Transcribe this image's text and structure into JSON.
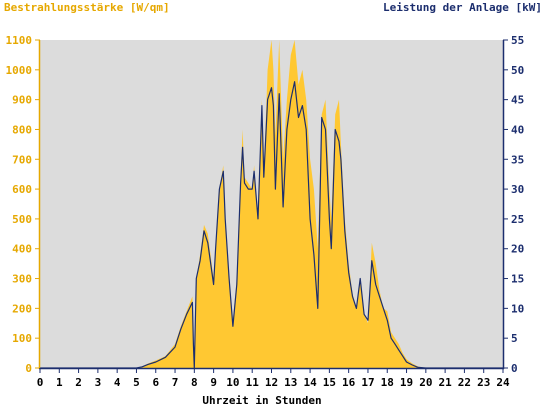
{
  "chart_data": {
    "type": "area",
    "title_left": "Bestrahlungsstärke [W/qm]",
    "title_right": "Leistung der Anlage [kW]",
    "xlabel": "Uhrzeit in Stunden",
    "xlim": [
      0,
      24
    ],
    "ylim_left": [
      0,
      1100
    ],
    "ylim_right": [
      0,
      55
    ],
    "x_ticks": [
      "0",
      "1",
      "2",
      "3",
      "4",
      "5",
      "6",
      "7",
      "8",
      "9",
      "10",
      "11",
      "12",
      "13",
      "14",
      "15",
      "16",
      "17",
      "18",
      "19",
      "20",
      "21",
      "22",
      "23",
      "24"
    ],
    "y_ticks_left": [
      "0",
      "100",
      "200",
      "300",
      "400",
      "500",
      "600",
      "700",
      "800",
      "900",
      "1000",
      "1100"
    ],
    "y_ticks_right": [
      "0",
      "5",
      "10",
      "15",
      "20",
      "25",
      "30",
      "35",
      "40",
      "45",
      "50",
      "55"
    ],
    "grid": false,
    "colors": {
      "plot_bg": "#dcdcdc",
      "irradiance_fill": "#ffc832",
      "power_line": "#1c2e6e",
      "left_axis": "#e6a800",
      "right_axis": "#1c2e6e"
    },
    "series": [
      {
        "axis": "left",
        "style": "area",
        "x": [
          0,
          5,
          5.3,
          5.6,
          6,
          6.5,
          7,
          7.3,
          7.6,
          7.9,
          7.95,
          8.0,
          8.1,
          8.3,
          8.5,
          8.7,
          9.0,
          9.1,
          9.3,
          9.5,
          9.6,
          9.8,
          10.0,
          10.2,
          10.4,
          10.5,
          10.6,
          10.8,
          11.0,
          11.1,
          11.3,
          11.5,
          11.6,
          11.8,
          12.0,
          12.1,
          12.2,
          12.4,
          12.6,
          12.8,
          13.0,
          13.2,
          13.4,
          13.6,
          13.8,
          14.0,
          14.2,
          14.4,
          14.6,
          14.8,
          15.0,
          15.1,
          15.3,
          15.5,
          15.6,
          15.8,
          16.0,
          16.2,
          16.4,
          16.6,
          16.8,
          17.0,
          17.2,
          17.4,
          17.6,
          17.8,
          18.0,
          18.2,
          18.4,
          18.6,
          18.8,
          19.0,
          19.3,
          19.6,
          20.0,
          20.3,
          24
        ],
        "values": [
          0,
          0,
          5,
          15,
          25,
          40,
          80,
          140,
          190,
          240,
          100,
          5,
          300,
          380,
          480,
          450,
          300,
          400,
          600,
          680,
          500,
          300,
          160,
          300,
          650,
          800,
          640,
          620,
          600,
          680,
          500,
          900,
          650,
          1000,
          1100,
          1000,
          780,
          1100,
          700,
          900,
          1050,
          1100,
          950,
          1000,
          900,
          700,
          600,
          400,
          850,
          900,
          600,
          500,
          850,
          900,
          750,
          500,
          350,
          250,
          200,
          300,
          180,
          150,
          420,
          350,
          260,
          200,
          190,
          120,
          100,
          80,
          50,
          30,
          15,
          5,
          0,
          0,
          0
        ]
      },
      {
        "axis": "right",
        "style": "line",
        "x": [
          0,
          5,
          5.3,
          5.6,
          6,
          6.5,
          7,
          7.3,
          7.6,
          7.9,
          7.95,
          8.0,
          8.1,
          8.3,
          8.5,
          8.7,
          9.0,
          9.1,
          9.3,
          9.5,
          9.6,
          9.8,
          10.0,
          10.2,
          10.4,
          10.5,
          10.6,
          10.8,
          11.0,
          11.1,
          11.3,
          11.5,
          11.6,
          11.8,
          12.0,
          12.1,
          12.2,
          12.4,
          12.6,
          12.8,
          13.0,
          13.2,
          13.4,
          13.6,
          13.8,
          14.0,
          14.2,
          14.4,
          14.6,
          14.8,
          15.0,
          15.1,
          15.3,
          15.5,
          15.6,
          15.8,
          16.0,
          16.2,
          16.4,
          16.6,
          16.8,
          17.0,
          17.2,
          17.4,
          17.6,
          17.8,
          18.0,
          18.2,
          18.4,
          18.6,
          18.8,
          19.0,
          19.3,
          19.6,
          20.0,
          20.3,
          24
        ],
        "values": [
          0,
          0,
          0.2,
          0.6,
          1,
          1.8,
          3.5,
          6.5,
          9,
          11,
          4,
          0,
          15,
          18,
          23,
          21,
          14,
          20,
          30,
          33,
          25,
          15,
          7,
          14,
          31,
          37,
          31,
          30,
          30,
          33,
          25,
          44,
          32,
          45,
          47,
          44,
          30,
          46,
          27,
          40,
          45,
          48,
          42,
          44,
          40,
          25,
          19,
          10,
          42,
          40,
          25,
          20,
          40,
          38,
          35,
          23,
          16,
          12,
          10,
          15,
          9,
          8,
          18,
          14,
          12,
          10,
          8,
          5,
          4,
          3,
          2,
          1,
          0.5,
          0.1,
          0,
          0,
          0
        ]
      }
    ]
  }
}
